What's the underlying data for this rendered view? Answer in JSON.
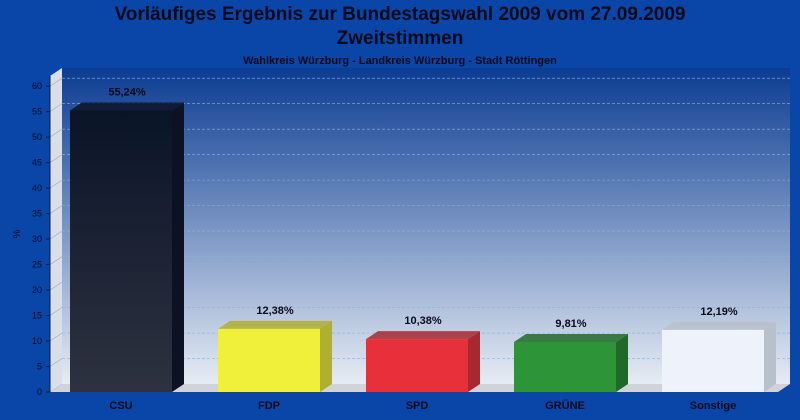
{
  "header": {
    "title": "Vorläufiges Ergebnis zur Bundestagswahl 2009 vom 27.09.2009",
    "subtitle": "Zweitstimmen",
    "region": "Wahlkreis Würzburg - Landkreis Würzburg - Stadt Röttingen"
  },
  "colors": {
    "background": "#0a46a8",
    "plot_top": "#0b3c92",
    "plot_bottom": "#e6ecf4"
  },
  "chart_data": {
    "type": "bar",
    "title": "Vorläufiges Ergebnis zur Bundestagswahl 2009 vom 27.09.2009",
    "subtitle": "Zweitstimmen",
    "ylabel": "%",
    "xlabel": "",
    "ylim": [
      0,
      62
    ],
    "yticks": [
      0,
      5,
      10,
      15,
      20,
      25,
      30,
      35,
      40,
      45,
      50,
      55,
      60
    ],
    "grid": true,
    "categories": [
      "CSU",
      "FDP",
      "SPD",
      "GRÜNE",
      "Sonstige"
    ],
    "values": [
      55.24,
      12.38,
      10.38,
      9.81,
      12.19
    ],
    "labels": [
      "55,24%",
      "12,38%",
      "10,38%",
      "9,81%",
      "12,19%"
    ],
    "bar_colors": [
      "#1a2238",
      "#f0f03a",
      "#e8303a",
      "#2e9438",
      "#eef2fa"
    ],
    "bar_colors_dark": [
      "#0c1224",
      "#b0b030",
      "#a82830",
      "#1f6a28",
      "#b8c0cc"
    ],
    "bar_gradient_top": [
      "#0a1428",
      null,
      null,
      null,
      null
    ]
  }
}
